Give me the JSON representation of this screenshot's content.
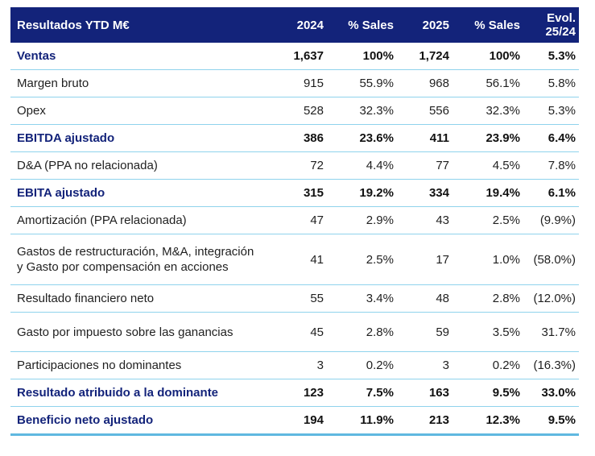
{
  "header": {
    "title": "Resultados YTD M€",
    "col_2024": "2024",
    "col_sales_2024": "% Sales",
    "col_2025": "2025",
    "col_sales_2025": "% Sales",
    "col_evol_line1": "Evol.",
    "col_evol_line2": "25/24"
  },
  "rows": [
    {
      "label": "Ventas",
      "v2024": "1,637",
      "s2024": "100%",
      "v2025": "1,724",
      "s2025": "100%",
      "evol": "5.3%"
    },
    {
      "label": "Margen bruto",
      "v2024": "915",
      "s2024": "55.9%",
      "v2025": "968",
      "s2025": "56.1%",
      "evol": "5.8%"
    },
    {
      "label": "Opex",
      "v2024": "528",
      "s2024": "32.3%",
      "v2025": "556",
      "s2025": "32.3%",
      "evol": "5.3%"
    },
    {
      "label": "EBITDA ajustado",
      "v2024": "386",
      "s2024": "23.6%",
      "v2025": "411",
      "s2025": "23.9%",
      "evol": "6.4%"
    },
    {
      "label": "D&A (PPA no relacionada)",
      "v2024": "72",
      "s2024": "4.4%",
      "v2025": "77",
      "s2025": "4.5%",
      "evol": "7.8%"
    },
    {
      "label": "EBITA ajustado",
      "v2024": "315",
      "s2024": "19.2%",
      "v2025": "334",
      "s2025": "19.4%",
      "evol": "6.1%"
    },
    {
      "label": "Amortización (PPA relacionada)",
      "v2024": "47",
      "s2024": "2.9%",
      "v2025": "43",
      "s2025": "2.5%",
      "evol": "(9.9%)"
    },
    {
      "label": "Gastos de restructuración, M&A, integración y Gasto por compensación en acciones",
      "v2024": "41",
      "s2024": "2.5%",
      "v2025": "17",
      "s2025": "1.0%",
      "evol": "(58.0%)"
    },
    {
      "label": "Resultado financiero neto",
      "v2024": "55",
      "s2024": "3.4%",
      "v2025": "48",
      "s2025": "2.8%",
      "evol": "(12.0%)"
    },
    {
      "label": "Gasto por impuesto sobre las ganancias",
      "v2024": "45",
      "s2024": "2.8%",
      "v2025": "59",
      "s2025": "3.5%",
      "evol": "31.7%"
    },
    {
      "label": "Participaciones no dominantes",
      "v2024": "3",
      "s2024": "0.2%",
      "v2025": "3",
      "s2025": "0.2%",
      "evol": "(16.3%)"
    },
    {
      "label": "Resultado atribuido a la dominante",
      "v2024": "123",
      "s2024": "7.5%",
      "v2025": "163",
      "s2025": "9.5%",
      "evol": "33.0%"
    },
    {
      "label": "Beneficio neto ajustado",
      "v2024": "194",
      "s2024": "11.9%",
      "v2025": "213",
      "s2025": "12.3%",
      "evol": "9.5%"
    }
  ],
  "colors": {
    "header_bg": "#13237a",
    "rule": "#8fd3ec",
    "bold_label": "#13237a"
  }
}
